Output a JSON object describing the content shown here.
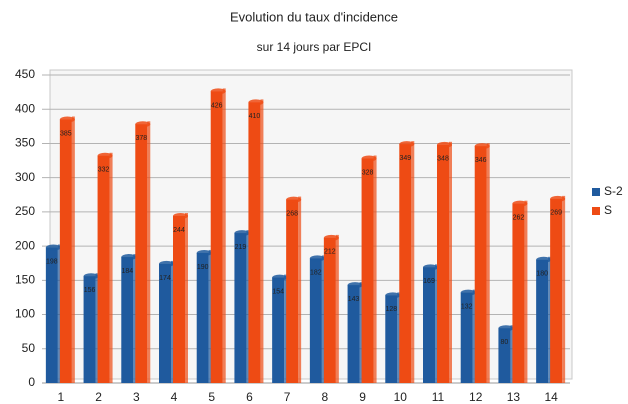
{
  "chart_data": {
    "type": "bar",
    "title": "Evolution du taux d'incidence",
    "subtitle": "sur 14 jours par EPCI",
    "categories": [
      "1",
      "2",
      "3",
      "4",
      "5",
      "6",
      "7",
      "8",
      "9",
      "10",
      "11",
      "12",
      "13",
      "14"
    ],
    "series": [
      {
        "name": "S-2",
        "color": "#1f5a9e",
        "values": [
          198,
          156,
          184,
          174,
          190,
          219,
          154,
          182,
          143,
          128,
          169,
          132,
          80,
          180
        ]
      },
      {
        "name": "S",
        "color": "#ee4b14",
        "values": [
          385,
          332,
          378,
          244,
          426,
          410,
          268,
          212,
          328,
          349,
          348,
          346,
          262,
          269
        ]
      }
    ],
    "ylim": [
      0,
      450
    ],
    "yticks": [
      0,
      50,
      100,
      150,
      200,
      250,
      300,
      350,
      400,
      450
    ],
    "grid": true,
    "legend": "right"
  }
}
